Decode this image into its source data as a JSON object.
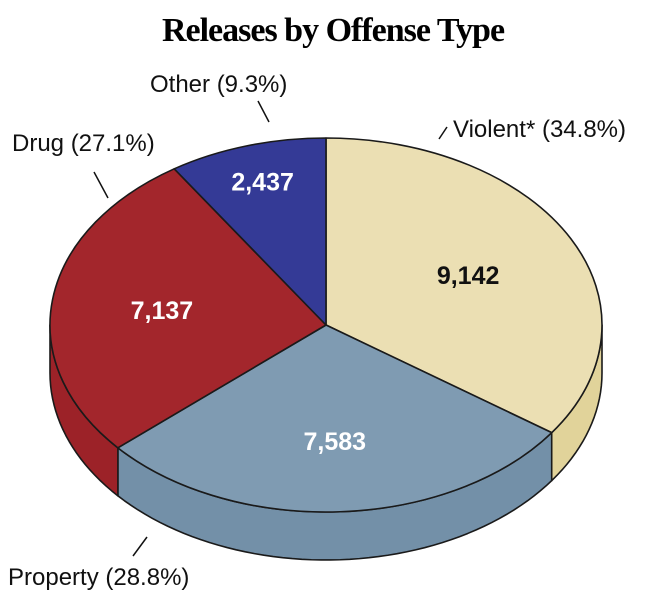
{
  "chart_data": {
    "type": "pie",
    "title": "Releases by Offense Type",
    "slices": [
      {
        "label": "Violent*",
        "value": 9142,
        "value_label": "9,142",
        "percent_label": "(34.8%)",
        "color": "#ebdfb3",
        "side_color": "#e1d39a",
        "value_color": "#111111"
      },
      {
        "label": "Property",
        "value": 7583,
        "value_label": "7,583",
        "percent_label": "(28.8%)",
        "color": "#7f9bb2",
        "side_color": "#7390a8",
        "value_color": "#ffffff"
      },
      {
        "label": "Drug",
        "value": 7137,
        "value_label": "7,137",
        "percent_label": "(27.1%)",
        "color": "#a3262c",
        "side_color": "#9c2228",
        "value_color": "#ffffff"
      },
      {
        "label": "Other",
        "value": 2437,
        "value_label": "2,437",
        "percent_label": "(9.3%)",
        "color": "#343a96",
        "side_color": "#2c318a",
        "value_color": "#ffffff"
      }
    ],
    "start_angle_deg": 90,
    "direction": "clockwise",
    "style": "3d-tilted"
  }
}
